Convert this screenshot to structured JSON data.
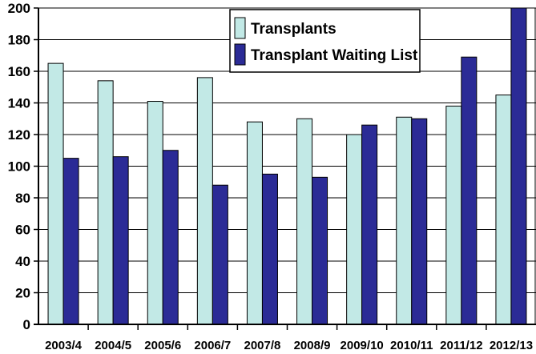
{
  "chart_data": {
    "type": "bar",
    "title": "",
    "xlabel": "",
    "ylabel": "",
    "ylim": [
      0,
      200
    ],
    "yticks": [
      0,
      20,
      40,
      60,
      80,
      100,
      120,
      140,
      160,
      180,
      200
    ],
    "grid": true,
    "legend_position": "top-right",
    "categories": [
      "2003/4",
      "2004/5",
      "2005/6",
      "2006/7",
      "2007/8",
      "2008/9",
      "2009/10",
      "2010/11",
      "2011/12",
      "2012/13"
    ],
    "series": [
      {
        "name": "Transplants",
        "color": "#c2e9e6",
        "values": [
          165,
          154,
          141,
          156,
          128,
          130,
          120,
          131,
          138,
          145
        ]
      },
      {
        "name": "Transplant Waiting List",
        "color": "#2b2b96",
        "values": [
          105,
          106,
          110,
          88,
          95,
          93,
          126,
          130,
          169,
          200
        ]
      }
    ]
  }
}
